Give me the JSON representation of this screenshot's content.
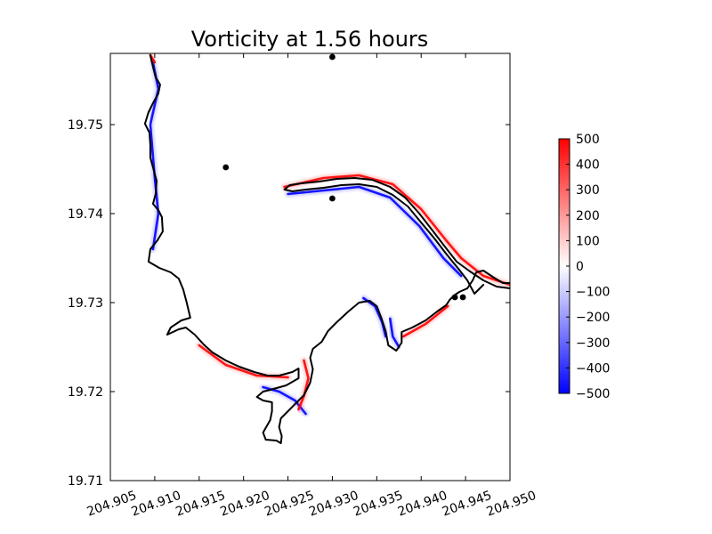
{
  "chart_data": {
    "type": "heatmap",
    "title": "Vorticity at 1.56 hours",
    "xlabel": "",
    "ylabel": "",
    "xlim": [
      204.905,
      204.95
    ],
    "ylim": [
      19.71,
      19.758
    ],
    "xticks": [
      "204.905",
      "204.910",
      "204.915",
      "204.920",
      "204.925",
      "204.930",
      "204.935",
      "204.940",
      "204.945",
      "204.950"
    ],
    "xtick_values": [
      204.905,
      204.91,
      204.915,
      204.92,
      204.925,
      204.93,
      204.935,
      204.94,
      204.945,
      204.95
    ],
    "yticks": [
      "19.71",
      "19.72",
      "19.73",
      "19.74",
      "19.75"
    ],
    "ytick_values": [
      19.71,
      19.72,
      19.73,
      19.74,
      19.75
    ],
    "colorbar": {
      "min": -500,
      "max": 500,
      "ticks": [
        "500",
        "400",
        "300",
        "200",
        "100",
        "0",
        "−100",
        "−200",
        "−300",
        "−400",
        "−500"
      ],
      "tick_values": [
        500,
        400,
        300,
        200,
        100,
        0,
        -100,
        -200,
        -300,
        -400,
        -500
      ],
      "colormap": "bwr",
      "color_low": "#0000ff",
      "color_mid": "#ffffff",
      "color_high": "#ff0000"
    },
    "markers": [
      {
        "x": 204.93,
        "y": 19.7576
      },
      {
        "x": 204.918,
        "y": 19.7452
      },
      {
        "x": 204.93,
        "y": 19.7417
      },
      {
        "x": 204.9438,
        "y": 19.7306
      },
      {
        "x": 204.9447,
        "y": 19.7306
      }
    ],
    "shoreline": [
      [
        204.9095,
        19.7578
      ],
      [
        204.9098,
        19.7565
      ],
      [
        204.9101,
        19.7553
      ],
      [
        204.9106,
        19.7545
      ],
      [
        204.9104,
        19.7535
      ],
      [
        204.9098,
        19.7524
      ],
      [
        204.9093,
        19.7514
      ],
      [
        204.9089,
        19.7501
      ],
      [
        204.9094,
        19.7491
      ],
      [
        204.9095,
        19.7477
      ],
      [
        204.9095,
        19.7463
      ],
      [
        204.9098,
        19.7452
      ],
      [
        204.9102,
        19.7437
      ],
      [
        204.9101,
        19.7422
      ],
      [
        204.9098,
        19.7411
      ],
      [
        204.9104,
        19.7404
      ],
      [
        204.9108,
        19.7396
      ],
      [
        204.9109,
        19.738
      ],
      [
        204.9103,
        19.737
      ],
      [
        204.9095,
        19.736
      ],
      [
        204.9093,
        19.7346
      ],
      [
        204.9105,
        19.7339
      ],
      [
        204.9118,
        19.7334
      ],
      [
        204.9127,
        19.7327
      ],
      [
        204.9132,
        19.7315
      ],
      [
        204.9136,
        19.73
      ],
      [
        204.914,
        19.7283
      ],
      [
        204.913,
        19.728
      ],
      [
        204.9118,
        19.7272
      ],
      [
        204.9114,
        19.7264
      ],
      [
        204.9127,
        19.727
      ],
      [
        204.9135,
        19.7272
      ],
      [
        204.9145,
        19.7264
      ],
      [
        204.9155,
        19.7253
      ],
      [
        204.9165,
        19.7244
      ],
      [
        204.918,
        19.7235
      ],
      [
        204.9195,
        19.7228
      ],
      [
        204.9212,
        19.7222
      ],
      [
        204.9227,
        19.7218
      ],
      [
        204.924,
        19.7218
      ],
      [
        204.9255,
        19.7222
      ],
      [
        204.9262,
        19.7226
      ],
      [
        204.9262,
        19.7215
      ],
      [
        204.9248,
        19.7207
      ],
      [
        204.923,
        19.7202
      ],
      [
        204.9222,
        19.72
      ],
      [
        204.9215,
        19.7194
      ],
      [
        204.9222,
        19.719
      ],
      [
        204.9232,
        19.7188
      ],
      [
        204.9232,
        19.7178
      ],
      [
        204.923,
        19.7168
      ],
      [
        204.9222,
        19.7154
      ],
      [
        204.9225,
        19.7146
      ],
      [
        204.9237,
        19.7145
      ],
      [
        204.9242,
        19.7142
      ],
      [
        204.9243,
        19.715
      ],
      [
        204.924,
        19.716
      ],
      [
        204.9242,
        19.717
      ],
      [
        204.925,
        19.7178
      ],
      [
        204.9258,
        19.7186
      ],
      [
        204.9268,
        19.7196
      ],
      [
        204.9275,
        19.721
      ],
      [
        204.9278,
        19.7225
      ],
      [
        204.9275,
        19.7238
      ],
      [
        204.9278,
        19.7248
      ],
      [
        204.9288,
        19.7256
      ],
      [
        204.9295,
        19.7268
      ],
      [
        204.9305,
        19.7278
      ],
      [
        204.9318,
        19.729
      ],
      [
        204.933,
        19.73
      ],
      [
        204.9342,
        19.7302
      ],
      [
        204.935,
        19.7296
      ],
      [
        204.9355,
        19.7283
      ],
      [
        204.936,
        19.7268
      ],
      [
        204.9363,
        19.7252
      ],
      [
        204.9372,
        19.7246
      ],
      [
        204.9378,
        19.7255
      ],
      [
        204.9378,
        19.7267
      ],
      [
        204.939,
        19.7272
      ],
      [
        204.9405,
        19.728
      ],
      [
        204.9418,
        19.729
      ],
      [
        204.9428,
        19.7297
      ],
      [
        204.9432,
        19.7303
      ],
      [
        204.9437,
        19.7308
      ],
      [
        204.9443,
        19.7312
      ],
      [
        204.9452,
        19.7316
      ],
      [
        204.9458,
        19.7325
      ],
      [
        204.9462,
        19.7334
      ],
      [
        204.947,
        19.7336
      ],
      [
        204.9482,
        19.7328
      ],
      [
        204.9492,
        19.7322
      ],
      [
        204.95,
        19.7322
      ]
    ],
    "spit_outer": [
      [
        204.9246,
        19.7427
      ],
      [
        204.9252,
        19.7432
      ],
      [
        204.9265,
        19.7434
      ],
      [
        204.9285,
        19.7436
      ],
      [
        204.9305,
        19.7439
      ],
      [
        204.9325,
        19.744
      ],
      [
        204.9345,
        19.7438
      ],
      [
        204.9365,
        19.743
      ],
      [
        204.9382,
        19.7418
      ],
      [
        204.9398,
        19.74
      ],
      [
        204.9412,
        19.7382
      ],
      [
        204.9425,
        19.7365
      ],
      [
        204.944,
        19.7346
      ],
      [
        204.9455,
        19.7335
      ],
      [
        204.947,
        19.7325
      ],
      [
        204.9485,
        19.7318
      ],
      [
        204.95,
        19.7316
      ]
    ],
    "spit_inner": [
      [
        204.9246,
        19.7427
      ],
      [
        204.9255,
        19.7425
      ],
      [
        204.927,
        19.7427
      ],
      [
        204.929,
        19.7429
      ],
      [
        204.931,
        19.7432
      ],
      [
        204.933,
        19.7433
      ],
      [
        204.935,
        19.743
      ],
      [
        204.9368,
        19.7421
      ],
      [
        204.9385,
        19.7408
      ],
      [
        204.94,
        19.739
      ],
      [
        204.9415,
        19.7372
      ],
      [
        204.9428,
        19.7355
      ],
      [
        204.9442,
        19.7338
      ],
      [
        204.9452,
        19.7325
      ],
      [
        204.946,
        19.731
      ],
      [
        204.947,
        19.732
      ]
    ],
    "vorticity_streaks": [
      {
        "sign": "positive",
        "points": [
          [
            204.9246,
            19.743
          ],
          [
            204.929,
            19.744
          ],
          [
            204.933,
            19.7443
          ],
          [
            204.9368,
            19.7433
          ],
          [
            204.94,
            19.7405
          ],
          [
            204.9428,
            19.737
          ],
          [
            204.9445,
            19.735
          ],
          [
            204.947,
            19.733
          ],
          [
            204.95,
            19.732
          ]
        ]
      },
      {
        "sign": "negative",
        "points": [
          [
            204.925,
            19.7422
          ],
          [
            204.929,
            19.7426
          ],
          [
            204.933,
            19.743
          ],
          [
            204.9365,
            19.7418
          ],
          [
            204.9398,
            19.7386
          ],
          [
            204.9425,
            19.735
          ],
          [
            204.9445,
            19.733
          ]
        ]
      },
      {
        "sign": "negative",
        "points": [
          [
            204.9098,
            19.757
          ],
          [
            204.9104,
            19.754
          ],
          [
            204.9095,
            19.75
          ],
          [
            204.91,
            19.744
          ],
          [
            204.9104,
            19.74
          ],
          [
            204.9098,
            19.736
          ]
        ]
      },
      {
        "sign": "positive",
        "points": [
          [
            204.915,
            19.7252
          ],
          [
            204.918,
            19.723
          ],
          [
            204.9215,
            19.7218
          ],
          [
            204.925,
            19.7216
          ]
        ]
      },
      {
        "sign": "negative",
        "points": [
          [
            204.9222,
            19.7205
          ],
          [
            204.924,
            19.72
          ],
          [
            204.9258,
            19.719
          ],
          [
            204.927,
            19.7175
          ]
        ]
      },
      {
        "sign": "positive",
        "points": [
          [
            204.9268,
            19.7235
          ],
          [
            204.9273,
            19.7215
          ],
          [
            204.9268,
            19.7195
          ],
          [
            204.9262,
            19.718
          ]
        ]
      },
      {
        "sign": "negative",
        "points": [
          [
            204.9335,
            19.7305
          ],
          [
            204.9348,
            19.7296
          ],
          [
            204.9356,
            19.7278
          ],
          [
            204.936,
            19.7262
          ]
        ]
      },
      {
        "sign": "negative",
        "points": [
          [
            204.9365,
            19.7282
          ],
          [
            204.9368,
            19.7262
          ],
          [
            204.9375,
            19.725
          ]
        ]
      },
      {
        "sign": "positive",
        "points": [
          [
            204.938,
            19.7262
          ],
          [
            204.9405,
            19.7276
          ],
          [
            204.943,
            19.7296
          ]
        ]
      },
      {
        "sign": "positive",
        "points": [
          [
            204.9095,
            19.7578
          ],
          [
            204.91,
            19.757
          ]
        ]
      }
    ]
  }
}
